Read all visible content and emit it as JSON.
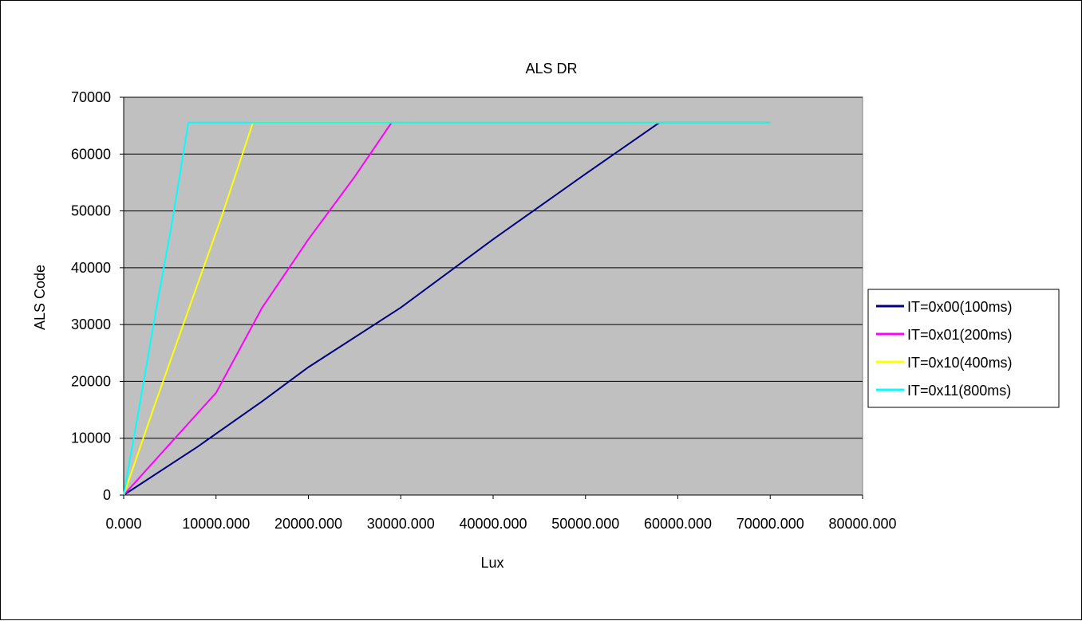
{
  "chart_data": {
    "type": "line",
    "title": "ALS DR",
    "xlabel": "Lux",
    "ylabel": "ALS Code",
    "xlim": [
      0,
      80000
    ],
    "ylim": [
      0,
      70000
    ],
    "x_ticks": [
      "0.000",
      "10000.000",
      "20000.000",
      "30000.000",
      "40000.000",
      "50000.000",
      "60000.000",
      "70000.000",
      "80000.000"
    ],
    "y_ticks": [
      "0",
      "10000",
      "20000",
      "30000",
      "40000",
      "50000",
      "60000",
      "70000"
    ],
    "grid": "horizontal",
    "plot_background": "#c0c0c0",
    "legend_position": "right",
    "series": [
      {
        "name": "IT=0x00(100ms)",
        "color": "#000080",
        "points": [
          [
            0,
            0
          ],
          [
            8000,
            8500
          ],
          [
            15000,
            16500
          ],
          [
            20000,
            22500
          ],
          [
            30000,
            33000
          ],
          [
            40000,
            45000
          ],
          [
            50000,
            56500
          ],
          [
            58000,
            65535
          ],
          [
            70000,
            65535
          ]
        ]
      },
      {
        "name": "IT=0x01(200ms)",
        "color": "#ff00ff",
        "points": [
          [
            0,
            0
          ],
          [
            5000,
            9000
          ],
          [
            10000,
            18000
          ],
          [
            15000,
            33000
          ],
          [
            20000,
            45000
          ],
          [
            25000,
            56000
          ],
          [
            29000,
            65535
          ],
          [
            70000,
            65535
          ]
        ]
      },
      {
        "name": "IT=0x10(400ms)",
        "color": "#ffff00",
        "points": [
          [
            0,
            0
          ],
          [
            3500,
            16500
          ],
          [
            7000,
            32500
          ],
          [
            10500,
            48500
          ],
          [
            14000,
            65535
          ],
          [
            70000,
            65535
          ]
        ]
      },
      {
        "name": "IT=0x11(800ms)",
        "color": "#00ffff",
        "points": [
          [
            0,
            0
          ],
          [
            1800,
            16500
          ],
          [
            3500,
            32500
          ],
          [
            5300,
            48500
          ],
          [
            7000,
            65535
          ],
          [
            70000,
            65535
          ]
        ]
      }
    ]
  }
}
